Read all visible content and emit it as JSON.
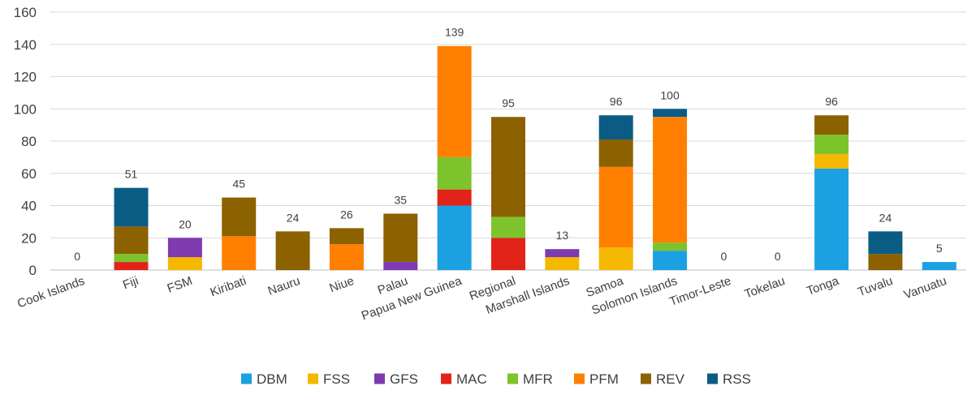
{
  "chart_data": {
    "type": "bar",
    "stacked": true,
    "title": "",
    "xlabel": "",
    "ylabel": "",
    "ylim": [
      0,
      160
    ],
    "yticks": [
      0,
      20,
      40,
      60,
      80,
      100,
      120,
      140,
      160
    ],
    "grid": true,
    "legend_position": "bottom",
    "categories": [
      "Cook Islands",
      "Fiji",
      "FSM",
      "Kiribati",
      "Nauru",
      "Niue",
      "Palau",
      "Papua New Guinea",
      "Regional",
      "Marshall Islands",
      "Samoa",
      "Solomon Islands",
      "Timor-Leste",
      "Tokelau",
      "Tonga",
      "Tuvalu",
      "Vanuatu"
    ],
    "totals": [
      0,
      51,
      20,
      45,
      24,
      26,
      35,
      139,
      95,
      13,
      96,
      100,
      0,
      0,
      96,
      24,
      5
    ],
    "series": [
      {
        "name": "DBM",
        "color": "#1ba1e2",
        "values": [
          0,
          0,
          0,
          0,
          0,
          0,
          0,
          40,
          0,
          0,
          0,
          12,
          0,
          0,
          63,
          0,
          5
        ]
      },
      {
        "name": "FSS",
        "color": "#f5b800",
        "values": [
          0,
          0,
          8,
          0,
          0,
          0,
          0,
          0,
          0,
          8,
          14,
          0,
          0,
          0,
          9,
          0,
          0
        ]
      },
      {
        "name": "GFS",
        "color": "#7e3bb0",
        "values": [
          0,
          0,
          12,
          0,
          0,
          0,
          5,
          0,
          0,
          5,
          0,
          0,
          0,
          0,
          0,
          0,
          0
        ]
      },
      {
        "name": "MAC",
        "color": "#e2231a",
        "values": [
          0,
          5,
          0,
          0,
          0,
          0,
          0,
          10,
          20,
          0,
          0,
          0,
          0,
          0,
          0,
          0,
          0
        ]
      },
      {
        "name": "MFR",
        "color": "#7dc32b",
        "values": [
          0,
          5,
          0,
          0,
          0,
          0,
          0,
          20,
          13,
          0,
          0,
          5,
          0,
          0,
          12,
          0,
          0
        ]
      },
      {
        "name": "PFM",
        "color": "#ff8000",
        "values": [
          0,
          0,
          0,
          21,
          0,
          16,
          0,
          69,
          0,
          0,
          50,
          78,
          0,
          0,
          0,
          0,
          0
        ]
      },
      {
        "name": "REV",
        "color": "#8c6200",
        "values": [
          0,
          17,
          0,
          24,
          24,
          10,
          30,
          0,
          62,
          0,
          17,
          0,
          0,
          0,
          12,
          10,
          0
        ]
      },
      {
        "name": "RSS",
        "color": "#0b5c84",
        "values": [
          0,
          24,
          0,
          0,
          0,
          0,
          0,
          0,
          0,
          0,
          15,
          5,
          0,
          0,
          0,
          14,
          0
        ]
      }
    ]
  }
}
